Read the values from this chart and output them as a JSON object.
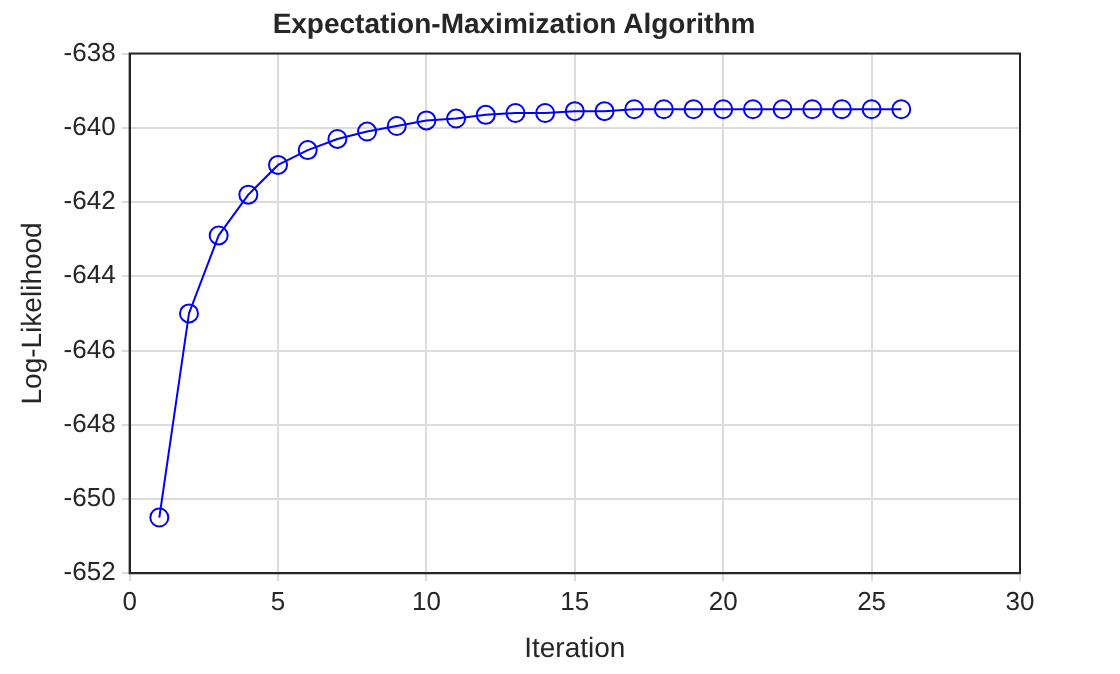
{
  "chart_data": {
    "type": "line",
    "title": "Expectation-Maximization Algorithm",
    "xlabel": "Iteration",
    "ylabel": "Log-Likelihood",
    "x": [
      1,
      2,
      3,
      4,
      5,
      6,
      7,
      8,
      9,
      10,
      11,
      12,
      13,
      14,
      15,
      16,
      17,
      18,
      19,
      20,
      21,
      22,
      23,
      24,
      25,
      26
    ],
    "series": [
      {
        "color": "#0000ff",
        "values": [
          -650.5,
          -645.0,
          -642.9,
          -641.8,
          -641.0,
          -640.6,
          -640.3,
          -640.1,
          -639.95,
          -639.8,
          -639.75,
          -639.65,
          -639.6,
          -639.6,
          -639.55,
          -639.55,
          -639.5,
          -639.5,
          -639.5,
          -639.5,
          -639.5,
          -639.5,
          -639.5,
          -639.5,
          -639.5,
          -639.5
        ]
      }
    ],
    "xlim": [
      0,
      30
    ],
    "xticks": [
      0,
      5,
      10,
      15,
      20,
      25,
      30
    ],
    "ylim": [
      -652,
      -638
    ],
    "yticks": [
      -652,
      -650,
      -648,
      -646,
      -644,
      -642,
      -640,
      -638
    ],
    "grid": true,
    "legend": false,
    "marker": "circle",
    "line_style": "solid"
  }
}
